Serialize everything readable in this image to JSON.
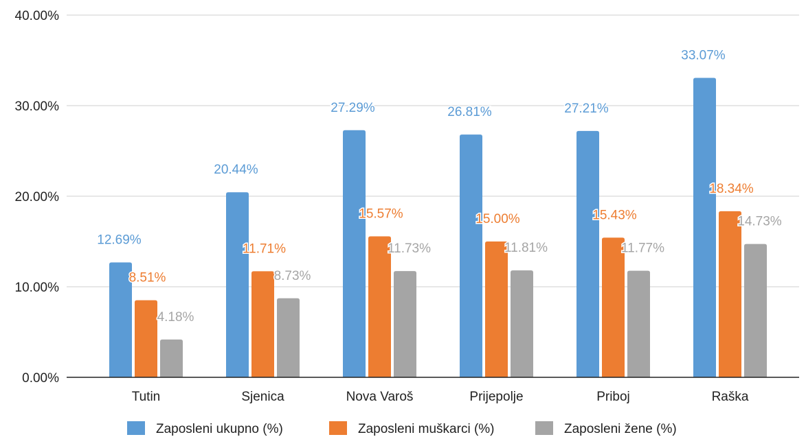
{
  "chart_data": {
    "type": "bar",
    "title": "",
    "xlabel": "",
    "ylabel": "",
    "ylim": [
      0,
      40
    ],
    "y_ticks": [
      "0.00%",
      "10.00%",
      "20.00%",
      "30.00%",
      "40.00%"
    ],
    "y_tick_values": [
      0,
      10,
      20,
      30,
      40
    ],
    "grid": true,
    "legend_position": "bottom",
    "categories": [
      "Tutin",
      "Sjenica",
      "Nova Varoš",
      "Prijepolje",
      "Priboj",
      "Raška"
    ],
    "series": [
      {
        "name": "Zaposleni ukupno (%)",
        "color": "#5b9bd5",
        "values": [
          12.69,
          20.44,
          27.29,
          26.81,
          27.21,
          33.07
        ],
        "labels": [
          "12.69%",
          "20.44%",
          "27.29%",
          "26.81%",
          "27.21%",
          "33.07%"
        ]
      },
      {
        "name": "Zaposleni muškarci (%)",
        "color": "#ed7d31",
        "values": [
          8.51,
          11.71,
          15.57,
          15.0,
          15.43,
          18.34
        ],
        "labels": [
          "8.51%",
          "11.71%",
          "15.57%",
          "15.00%",
          "15.43%",
          "18.34%"
        ]
      },
      {
        "name": "Zaposleni žene (%)",
        "color": "#a5a5a5",
        "values": [
          4.18,
          8.73,
          11.73,
          11.81,
          11.77,
          14.73
        ],
        "labels": [
          "4.18%",
          "8.73%",
          "11.73%",
          "11.81%",
          "11.77%",
          "14.73%"
        ]
      }
    ]
  }
}
